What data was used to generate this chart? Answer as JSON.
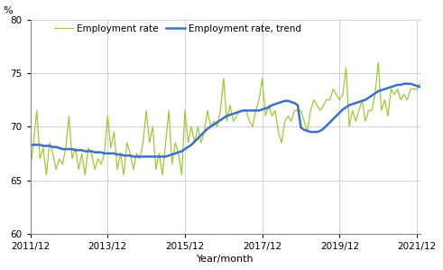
{
  "title": "",
  "ylabel": "%",
  "xlabel": "Year/month",
  "ylim": [
    60,
    80
  ],
  "yticks": [
    60,
    65,
    70,
    75,
    80
  ],
  "xtick_labels": [
    "2011/12",
    "2013/12",
    "2015/12",
    "2017/12",
    "2019/12",
    "2021/12"
  ],
  "legend": [
    "Employment rate",
    "Employment rate, trend"
  ],
  "line_color_rate": "#99cc33",
  "line_color_trend": "#3b6fcc",
  "employment_rate": [
    66.0,
    68.5,
    71.5,
    67.0,
    68.0,
    65.5,
    68.5,
    67.5,
    66.0,
    67.0,
    66.5,
    68.0,
    71.0,
    67.0,
    68.0,
    66.0,
    67.5,
    65.5,
    68.0,
    67.5,
    66.0,
    67.0,
    66.5,
    67.5,
    71.0,
    68.0,
    69.5,
    66.0,
    67.5,
    65.5,
    68.5,
    67.5,
    66.0,
    67.5,
    67.0,
    68.5,
    71.5,
    68.5,
    70.0,
    66.0,
    67.5,
    65.5,
    68.5,
    71.5,
    66.5,
    68.5,
    67.5,
    65.5,
    71.5,
    68.5,
    70.0,
    68.5,
    70.0,
    68.5,
    69.5,
    71.5,
    70.0,
    70.5,
    70.0,
    71.5,
    74.5,
    70.5,
    72.0,
    70.5,
    71.0,
    71.5,
    71.5,
    71.5,
    70.5,
    70.0,
    71.5,
    72.5,
    74.5,
    71.0,
    72.0,
    71.0,
    71.5,
    69.5,
    68.5,
    70.5,
    71.0,
    70.5,
    71.5,
    71.5,
    71.5,
    70.5,
    69.5,
    71.5,
    72.5,
    72.0,
    71.5,
    72.0,
    72.5,
    72.5,
    73.5,
    73.0,
    72.5,
    73.0,
    75.5,
    70.0,
    71.5,
    70.5,
    71.5,
    72.5,
    70.5,
    71.5,
    71.5,
    73.0,
    76.0,
    71.5,
    72.5,
    71.0,
    73.5,
    73.0,
    73.5,
    72.5,
    73.0,
    72.5,
    73.5,
    73.5,
    73.5,
    74.0
  ],
  "employment_trend": [
    68.3,
    68.3,
    68.3,
    68.3,
    68.2,
    68.2,
    68.2,
    68.1,
    68.1,
    68.0,
    67.9,
    67.9,
    67.9,
    67.9,
    67.8,
    67.8,
    67.8,
    67.7,
    67.7,
    67.7,
    67.6,
    67.6,
    67.6,
    67.5,
    67.5,
    67.5,
    67.5,
    67.4,
    67.4,
    67.3,
    67.3,
    67.3,
    67.2,
    67.2,
    67.2,
    67.2,
    67.2,
    67.2,
    67.2,
    67.2,
    67.2,
    67.2,
    67.2,
    67.3,
    67.4,
    67.5,
    67.6,
    67.7,
    67.9,
    68.1,
    68.3,
    68.6,
    68.9,
    69.2,
    69.5,
    69.8,
    70.0,
    70.2,
    70.4,
    70.6,
    70.8,
    71.0,
    71.1,
    71.2,
    71.3,
    71.4,
    71.5,
    71.5,
    71.5,
    71.5,
    71.5,
    71.5,
    71.6,
    71.7,
    71.8,
    72.0,
    72.1,
    72.2,
    72.3,
    72.4,
    72.4,
    72.3,
    72.2,
    72.0,
    69.9,
    69.7,
    69.6,
    69.5,
    69.5,
    69.5,
    69.6,
    69.8,
    70.1,
    70.4,
    70.7,
    71.0,
    71.3,
    71.6,
    71.8,
    72.0,
    72.1,
    72.2,
    72.3,
    72.4,
    72.5,
    72.7,
    72.9,
    73.1,
    73.3,
    73.4,
    73.5,
    73.6,
    73.7,
    73.8,
    73.9,
    73.9,
    74.0,
    74.0,
    74.0,
    73.9,
    73.8,
    73.7
  ]
}
